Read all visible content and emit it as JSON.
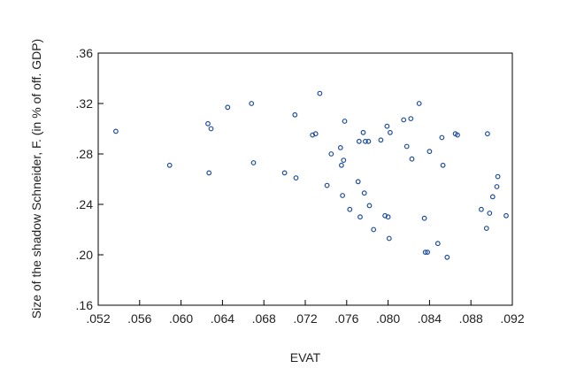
{
  "chart_data": {
    "type": "scatter",
    "title": "",
    "xlabel": "EVAT",
    "ylabel": "Size of the shadow Schneider, F. (in % of off. GDP)",
    "xlim": [
      0.052,
      0.092
    ],
    "ylim": [
      0.16,
      0.36
    ],
    "xticks": [
      ".052",
      ".056",
      ".060",
      ".064",
      ".068",
      ".072",
      ".076",
      ".080",
      ".084",
      ".088",
      ".092"
    ],
    "yticks": [
      ".16",
      ".20",
      ".24",
      ".28",
      ".32",
      ".36"
    ],
    "grid": false,
    "legend": "none",
    "colors": {
      "marker": "#1f4e9c",
      "axis": "#000000",
      "text": "#222222",
      "background": "#ffffff"
    },
    "series": [
      {
        "values": [
          [
            0.0537,
            0.298
          ],
          [
            0.0589,
            0.271
          ],
          [
            0.0626,
            0.304
          ],
          [
            0.0629,
            0.3
          ],
          [
            0.0627,
            0.265
          ],
          [
            0.0645,
            0.317
          ],
          [
            0.0668,
            0.32
          ],
          [
            0.067,
            0.273
          ],
          [
            0.07,
            0.265
          ],
          [
            0.071,
            0.311
          ],
          [
            0.0711,
            0.261
          ],
          [
            0.0727,
            0.295
          ],
          [
            0.073,
            0.296
          ],
          [
            0.0734,
            0.328
          ],
          [
            0.0741,
            0.255
          ],
          [
            0.0745,
            0.28
          ],
          [
            0.0754,
            0.285
          ],
          [
            0.0755,
            0.271
          ],
          [
            0.0756,
            0.247
          ],
          [
            0.0757,
            0.275
          ],
          [
            0.0758,
            0.306
          ],
          [
            0.0763,
            0.236
          ],
          [
            0.0771,
            0.258
          ],
          [
            0.0772,
            0.29
          ],
          [
            0.0773,
            0.23
          ],
          [
            0.0776,
            0.297
          ],
          [
            0.0777,
            0.249
          ],
          [
            0.0778,
            0.29
          ],
          [
            0.0781,
            0.29
          ],
          [
            0.0782,
            0.239
          ],
          [
            0.0786,
            0.22
          ],
          [
            0.0793,
            0.291
          ],
          [
            0.0797,
            0.231
          ],
          [
            0.0799,
            0.302
          ],
          [
            0.08,
            0.23
          ],
          [
            0.0801,
            0.213
          ],
          [
            0.0802,
            0.297
          ],
          [
            0.0815,
            0.307
          ],
          [
            0.0818,
            0.286
          ],
          [
            0.0822,
            0.308
          ],
          [
            0.0823,
            0.276
          ],
          [
            0.083,
            0.32
          ],
          [
            0.0835,
            0.229
          ],
          [
            0.0836,
            0.202
          ],
          [
            0.0838,
            0.202
          ],
          [
            0.084,
            0.282
          ],
          [
            0.0848,
            0.209
          ],
          [
            0.0852,
            0.293
          ],
          [
            0.0853,
            0.271
          ],
          [
            0.0857,
            0.198
          ],
          [
            0.0865,
            0.296
          ],
          [
            0.0867,
            0.295
          ],
          [
            0.089,
            0.236
          ],
          [
            0.0895,
            0.221
          ],
          [
            0.0896,
            0.296
          ],
          [
            0.0898,
            0.233
          ],
          [
            0.0901,
            0.246
          ],
          [
            0.0905,
            0.254
          ],
          [
            0.0906,
            0.262
          ],
          [
            0.0914,
            0.231
          ]
        ]
      }
    ]
  }
}
